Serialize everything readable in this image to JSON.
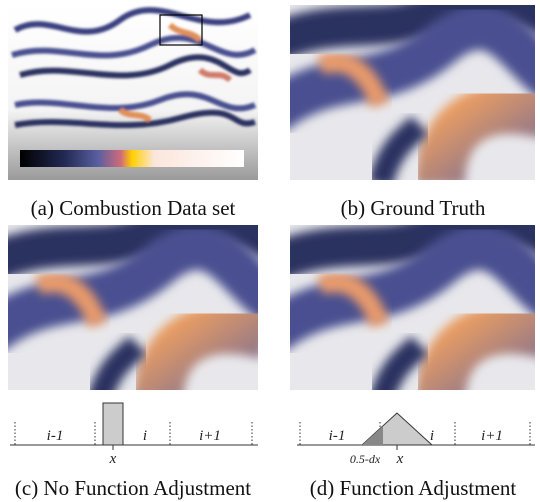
{
  "panels": [
    {
      "caption": "(a) Combustion Data set"
    },
    {
      "caption": "(b) Ground Truth"
    },
    {
      "caption": "(c) No Function Adjustment",
      "diagram": {
        "labels": [
          "i-1",
          "i",
          "i+1"
        ],
        "x_label": "x"
      }
    },
    {
      "caption": "(d) Function Adjustment",
      "diagram": {
        "labels": [
          "i-1",
          "i",
          "i+1"
        ],
        "x_label": "x",
        "offset_label": "0.5-dx"
      }
    }
  ]
}
